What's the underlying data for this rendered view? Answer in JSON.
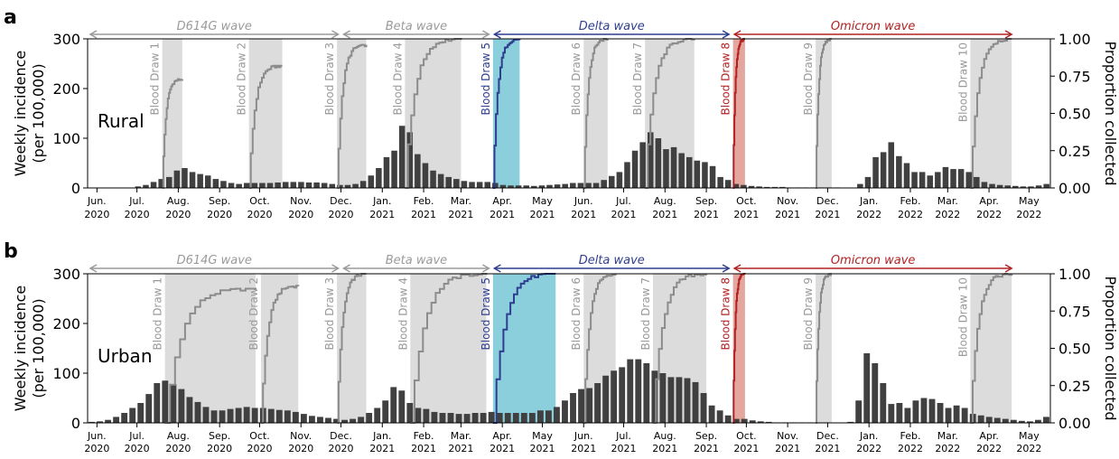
{
  "figure": {
    "shared_xlabels": [
      "Jun. 2020",
      "Jul. 2020",
      "Aug. 2020",
      "Sep. 2020",
      "Oct. 2020",
      "Nov. 2020",
      "Dec. 2020",
      "Jan. 2021",
      "Feb. 2021",
      "Mar. 2021",
      "Apr. 2021",
      "May 2021",
      "Jun. 2021",
      "Jul. 2021",
      "Aug. 2021",
      "Sep. 2021",
      "Oct. 2021",
      "Nov. 2021",
      "Dec. 2021",
      "Jan. 2022",
      "Feb. 2022",
      "Mar. 2022",
      "Apr. 2022",
      "May 2022"
    ]
  },
  "colors": {
    "bar": "#404040",
    "shade": "#dcdcdc",
    "curve": "#8c8c8c",
    "delta": "#2f3d8f",
    "delta_fill": "#8ccfdc",
    "omicron": "#b22222",
    "omicron_fill": "#e3a79f",
    "d614g": "#9a9a9a",
    "beta": "#9a9a9a"
  },
  "chart_data": [
    {
      "type": "bar",
      "panel_letter": "a",
      "region": "Rural",
      "ylabel": "Weekly incidence\n(per 100,000)",
      "y2label": "Proportion collected",
      "ylim": [
        0,
        300
      ],
      "yticks": [
        0,
        100,
        200,
        300
      ],
      "y2ticks": [
        "0.00",
        "0.25",
        "0.50",
        "0.75",
        "1.00"
      ],
      "x_start": "2020-05-25",
      "x_end": "2022-05-17",
      "waves": [
        {
          "name": "D614G wave",
          "start": "2020-05-25",
          "end": "2020-12-01",
          "color": "#9a9a9a"
        },
        {
          "name": "Beta wave",
          "start": "2020-12-01",
          "end": "2021-03-24",
          "color": "#9a9a9a"
        },
        {
          "name": "Delta wave",
          "start": "2021-03-24",
          "end": "2021-09-20",
          "color": "#2f3d8f"
        },
        {
          "name": "Omicron wave",
          "start": "2021-09-20",
          "end": "2022-04-20",
          "color": "#b22222"
        }
      ],
      "draws": [
        {
          "label": "Blood Draw 1",
          "start": "2020-07-20",
          "end": "2020-08-04",
          "final_proportion": 0.73,
          "kind": "grey"
        },
        {
          "label": "Blood Draw 2",
          "start": "2020-09-23",
          "end": "2020-10-18",
          "final_proportion": 0.82,
          "kind": "grey"
        },
        {
          "label": "Blood Draw 3",
          "start": "2020-11-28",
          "end": "2020-12-20",
          "final_proportion": 0.96,
          "kind": "grey"
        },
        {
          "label": "Blood Draw 4",
          "start": "2021-01-18",
          "end": "2021-03-01",
          "final_proportion": 1.0,
          "kind": "grey"
        },
        {
          "label": "Blood Draw 5",
          "start": "2021-03-25",
          "end": "2021-04-14",
          "final_proportion": 1.0,
          "kind": "delta"
        },
        {
          "label": "Blood Draw 6",
          "start": "2021-06-01",
          "end": "2021-06-19",
          "final_proportion": 1.0,
          "kind": "grey"
        },
        {
          "label": "Blood Draw 7",
          "start": "2021-07-17",
          "end": "2021-08-23",
          "final_proportion": 1.0,
          "kind": "grey"
        },
        {
          "label": "Blood Draw 8",
          "start": "2021-09-21",
          "end": "2021-09-30",
          "final_proportion": 1.0,
          "kind": "omicron"
        },
        {
          "label": "Blood Draw 9",
          "start": "2021-11-22",
          "end": "2021-12-04",
          "final_proportion": 1.0,
          "kind": "grey"
        },
        {
          "label": "Blood Draw 10",
          "start": "2022-03-18",
          "end": "2022-04-18",
          "final_proportion": 1.0,
          "kind": "grey"
        }
      ],
      "weekly": [
        0,
        0,
        0,
        0,
        0,
        0,
        3,
        6,
        12,
        18,
        22,
        35,
        40,
        32,
        28,
        25,
        18,
        14,
        10,
        8,
        10,
        10,
        10,
        10,
        11,
        12,
        12,
        12,
        11,
        11,
        10,
        8,
        6,
        6,
        8,
        14,
        25,
        40,
        62,
        75,
        125,
        112,
        68,
        50,
        35,
        28,
        22,
        18,
        14,
        12,
        12,
        12,
        10,
        6,
        5,
        5,
        5,
        4,
        5,
        6,
        7,
        8,
        10,
        10,
        10,
        10,
        16,
        24,
        32,
        52,
        75,
        92,
        112,
        100,
        78,
        82,
        70,
        62,
        55,
        52,
        44,
        22,
        16,
        8,
        6,
        4,
        3,
        2,
        2,
        2,
        1,
        1,
        1,
        1,
        1,
        1,
        1,
        0,
        0,
        8,
        22,
        62,
        72,
        92,
        64,
        50,
        32,
        32,
        25,
        32,
        42,
        38,
        38,
        32,
        22,
        12,
        8,
        6,
        5,
        4,
        3,
        3,
        5,
        8
      ]
    },
    {
      "type": "bar",
      "panel_letter": "b",
      "region": "Urban",
      "ylabel": "Weekly incidence\n(per 100,000)",
      "y2label": "Proportion collected",
      "ylim": [
        0,
        300
      ],
      "yticks": [
        0,
        100,
        200,
        300
      ],
      "y2ticks": [
        "0.00",
        "0.25",
        "0.50",
        "0.75",
        "1.00"
      ],
      "x_start": "2020-05-25",
      "x_end": "2022-05-17",
      "waves": [
        {
          "name": "D614G wave",
          "start": "2020-05-25",
          "end": "2020-12-01",
          "color": "#9a9a9a"
        },
        {
          "name": "Beta wave",
          "start": "2020-12-01",
          "end": "2021-03-24",
          "color": "#9a9a9a"
        },
        {
          "name": "Delta wave",
          "start": "2021-03-24",
          "end": "2021-09-20",
          "color": "#2f3d8f"
        },
        {
          "name": "Omicron wave",
          "start": "2021-09-20",
          "end": "2022-04-20",
          "color": "#b22222"
        }
      ],
      "draws": [
        {
          "label": "Blood Draw 1",
          "start": "2020-07-22",
          "end": "2020-09-28",
          "final_proportion": 0.9,
          "kind": "grey"
        },
        {
          "label": "Blood Draw 2",
          "start": "2020-10-02",
          "end": "2020-10-30",
          "final_proportion": 0.92,
          "kind": "grey"
        },
        {
          "label": "Blood Draw 3",
          "start": "2020-11-28",
          "end": "2020-12-20",
          "final_proportion": 1.0,
          "kind": "grey"
        },
        {
          "label": "Blood Draw 4",
          "start": "2021-01-22",
          "end": "2021-03-20",
          "final_proportion": 1.0,
          "kind": "grey"
        },
        {
          "label": "Blood Draw 5",
          "start": "2021-03-25",
          "end": "2021-05-11",
          "final_proportion": 1.0,
          "kind": "delta"
        },
        {
          "label": "Blood Draw 6",
          "start": "2021-06-01",
          "end": "2021-06-25",
          "final_proportion": 1.0,
          "kind": "grey"
        },
        {
          "label": "Blood Draw 7",
          "start": "2021-07-23",
          "end": "2021-09-01",
          "final_proportion": 1.0,
          "kind": "grey"
        },
        {
          "label": "Blood Draw 8",
          "start": "2021-09-21",
          "end": "2021-09-30",
          "final_proportion": 1.0,
          "kind": "omicron"
        },
        {
          "label": "Blood Draw 9",
          "start": "2021-11-22",
          "end": "2021-12-04",
          "final_proportion": 1.0,
          "kind": "grey"
        },
        {
          "label": "Blood Draw 10",
          "start": "2022-03-18",
          "end": "2022-04-18",
          "final_proportion": 1.0,
          "kind": "grey"
        }
      ],
      "weekly": [
        2,
        3,
        6,
        12,
        20,
        30,
        40,
        58,
        80,
        85,
        78,
        68,
        52,
        42,
        32,
        25,
        25,
        28,
        30,
        32,
        30,
        30,
        28,
        26,
        25,
        22,
        18,
        14,
        12,
        10,
        8,
        6,
        8,
        12,
        20,
        30,
        45,
        72,
        65,
        40,
        30,
        28,
        22,
        20,
        20,
        18,
        18,
        20,
        20,
        22,
        20,
        20,
        20,
        20,
        20,
        25,
        25,
        32,
        45,
        60,
        68,
        70,
        80,
        95,
        105,
        112,
        128,
        128,
        120,
        105,
        100,
        92,
        92,
        90,
        82,
        60,
        35,
        25,
        15,
        8,
        8,
        5,
        3,
        2,
        1,
        1,
        1,
        1,
        1,
        1,
        1,
        0,
        0,
        2,
        45,
        140,
        120,
        80,
        38,
        40,
        30,
        45,
        50,
        48,
        40,
        30,
        35,
        30,
        18,
        15,
        12,
        10,
        8,
        6,
        4,
        3,
        6,
        12
      ]
    }
  ]
}
